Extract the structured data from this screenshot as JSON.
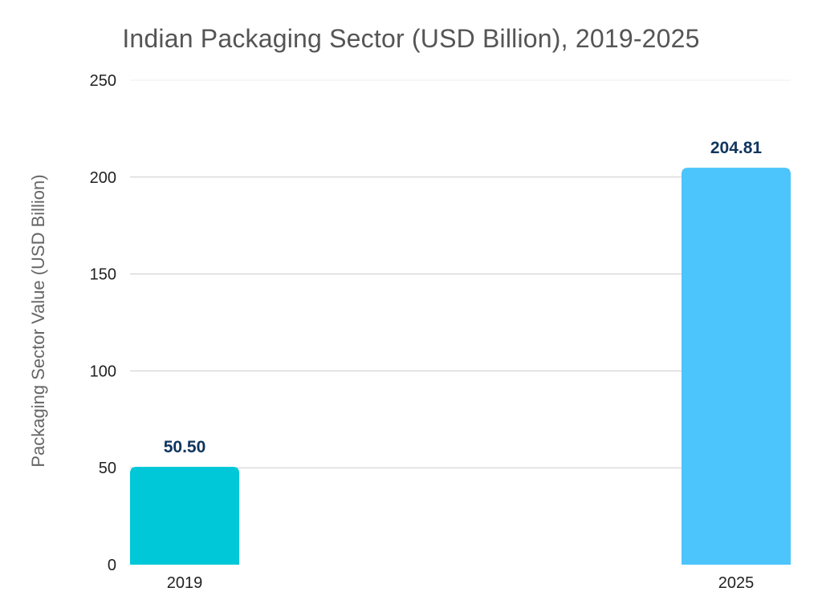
{
  "chart_data": {
    "type": "bar",
    "title": "Indian Packaging Sector (USD Billion), 2019-2025",
    "xlabel": "",
    "ylabel": "Packaging Sector Value (USD Billion)",
    "categories": [
      "2019",
      "2025"
    ],
    "values": [
      50.5,
      204.81
    ],
    "value_labels": [
      "50.50",
      "204.81"
    ],
    "ylim": [
      0,
      250
    ],
    "yticks": [
      0,
      50,
      100,
      150,
      200,
      250
    ],
    "grid": true,
    "legend": "none",
    "colors": {
      "bars": [
        "#00c8d8",
        "#4cc4fc"
      ],
      "data_label": "#10355e",
      "gridline": "#cccccc",
      "tick_text": "#222222"
    }
  }
}
